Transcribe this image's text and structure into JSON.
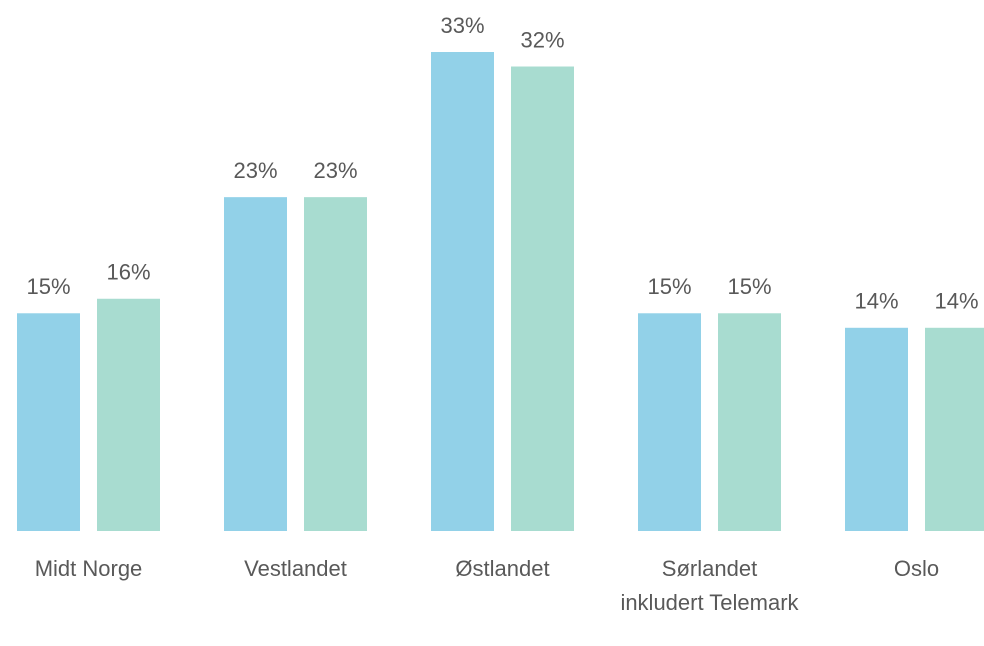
{
  "chart_data": {
    "type": "bar",
    "categories": [
      "Midt Norge",
      "Vestlandet",
      "Østlandet",
      "Sørlandet inkludert Telemark",
      "Oslo"
    ],
    "series": [
      {
        "color": "#92d1e8",
        "values": [
          15,
          23,
          33,
          15,
          14
        ],
        "value_labels": [
          "15%",
          "23%",
          "33%",
          "15%",
          "14%"
        ]
      },
      {
        "color": "#a8dcd0",
        "values": [
          16,
          23,
          32,
          15,
          14
        ],
        "value_labels": [
          "16%",
          "23%",
          "32%",
          "15%",
          "14%"
        ]
      }
    ],
    "ylim": [
      0,
      33
    ]
  }
}
